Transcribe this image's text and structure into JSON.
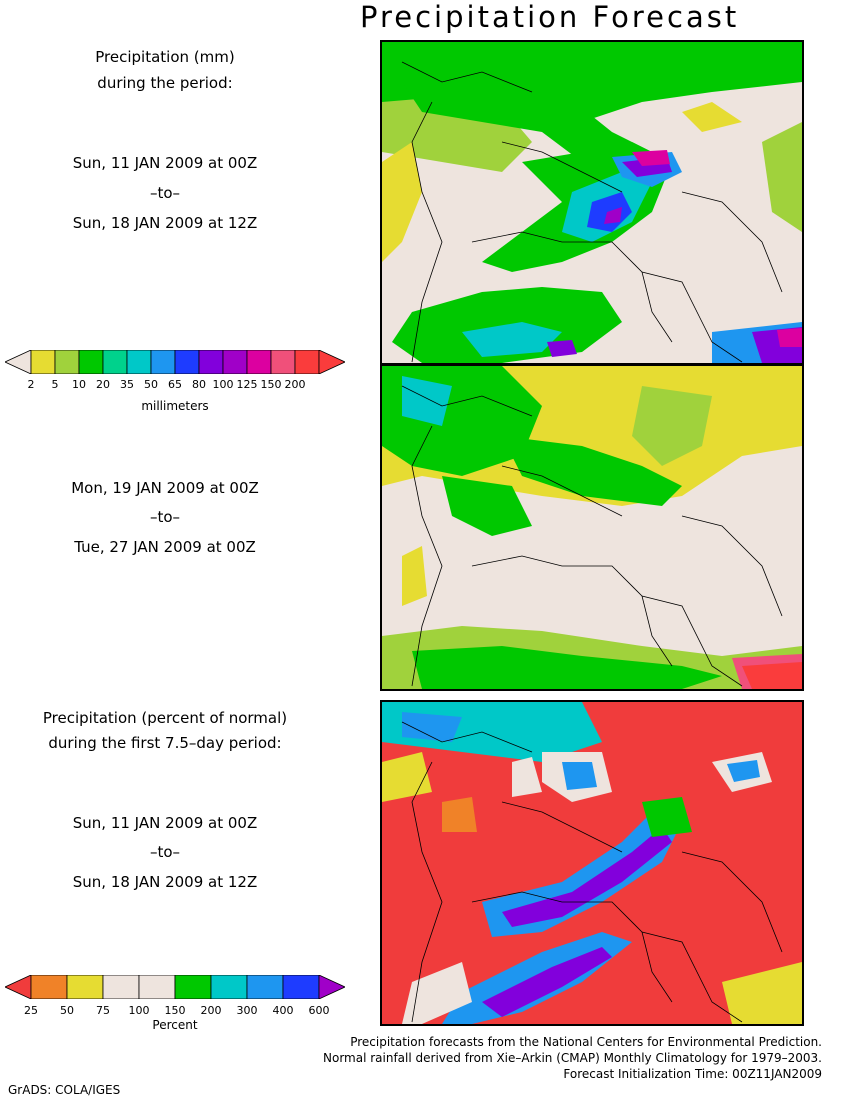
{
  "title": "Precipitation Forecast",
  "panel1": {
    "heading1": "Precipitation (mm)",
    "heading2": "during the period:",
    "start": "Sun, 11 JAN 2009 at 00Z",
    "sep": "–to–",
    "end": "Sun, 18 JAN 2009 at 12Z"
  },
  "panel2": {
    "start": "Mon, 19 JAN 2009 at 00Z",
    "sep": "–to–",
    "end": "Tue, 27 JAN 2009 at 00Z"
  },
  "panel3": {
    "heading1": "Precipitation (percent of normal)",
    "heading2": "during the first 7.5–day period:",
    "start": "Sun, 11 JAN 2009 at 00Z",
    "sep": "–to–",
    "end": "Sun, 18 JAN 2009 at 12Z"
  },
  "colorbar_mm": {
    "labels": [
      "2",
      "5",
      "10",
      "20",
      "35",
      "50",
      "65",
      "80",
      "100",
      "125",
      "150",
      "200"
    ],
    "colors": [
      "#e6dc32",
      "#a0d23c",
      "#00c800",
      "#00d28c",
      "#00c8c8",
      "#1e96f0",
      "#1e3cff",
      "#8200dc",
      "#a000c8",
      "#dc00a0",
      "#f0507a",
      "#fa3c3c"
    ],
    "under_color": "#eee4de",
    "over_color": "#fa3c3c",
    "units": "millimeters"
  },
  "colorbar_pct": {
    "labels": [
      "25",
      "50",
      "75",
      "100",
      "150",
      "200",
      "300",
      "400",
      "600"
    ],
    "colors": [
      "#f08228",
      "#e6dc32",
      "#eee4de",
      "#eee4de",
      "#00c800",
      "#00c8c8",
      "#1e96f0",
      "#1e3cff"
    ],
    "under_color": "#f03c3c",
    "over_color": "#a000c8",
    "units": "Percent"
  },
  "footer": {
    "line1": "Precipitation forecasts from the National Centers for Environmental Prediction.",
    "line2": "Normal rainfall derived from Xie–Arkin (CMAP) Monthly Climatology for 1979–2003.",
    "line3": "Forecast Initialization Time: 00Z11JAN2009"
  },
  "credit": "GrADS: COLA/IGES"
}
